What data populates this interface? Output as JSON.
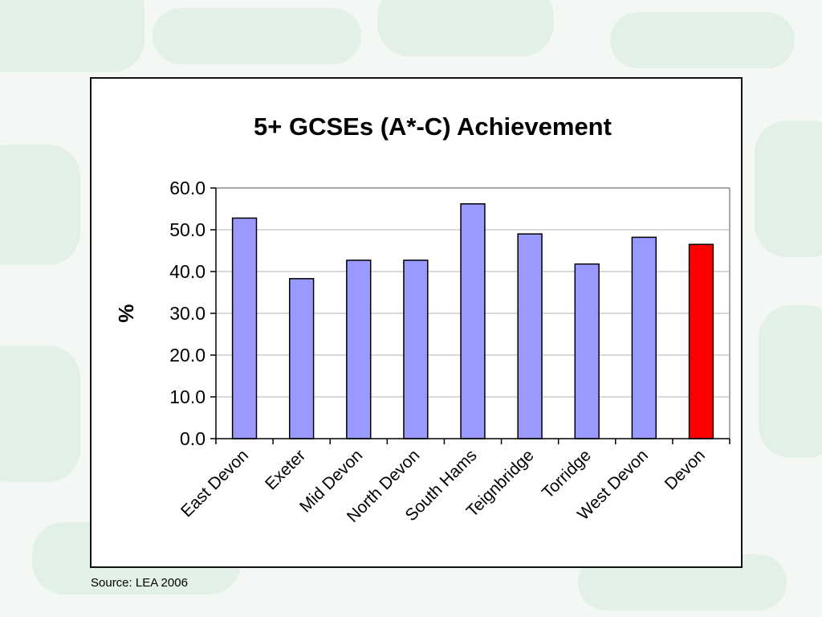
{
  "slide": {
    "source_note": "Source: LEA 2006"
  },
  "colors": {
    "background": "#f3f8f5",
    "default_bar": "#9999ff",
    "highlight_bar": "#ff0000",
    "bar_outline": "#000000",
    "gridline": "#b3b3b3"
  },
  "chart_data": {
    "type": "bar",
    "title": "5+ GCSEs (A*-C) Achievement",
    "xlabel": "",
    "ylabel": "%",
    "categories": [
      "East Devon",
      "Exeter",
      "Mid Devon",
      "North Devon",
      "South Hams",
      "Teignbridge",
      "Torridge",
      "West Devon",
      "Devon"
    ],
    "values": [
      52.8,
      38.3,
      42.7,
      42.7,
      56.2,
      49.0,
      41.8,
      48.2,
      46.5
    ],
    "highlight_category": "Devon",
    "ylim": [
      0,
      60
    ],
    "yticks": [
      "0.0",
      "10.0",
      "20.0",
      "30.0",
      "40.0",
      "50.0",
      "60.0"
    ],
    "grid": true,
    "legend": "none"
  }
}
